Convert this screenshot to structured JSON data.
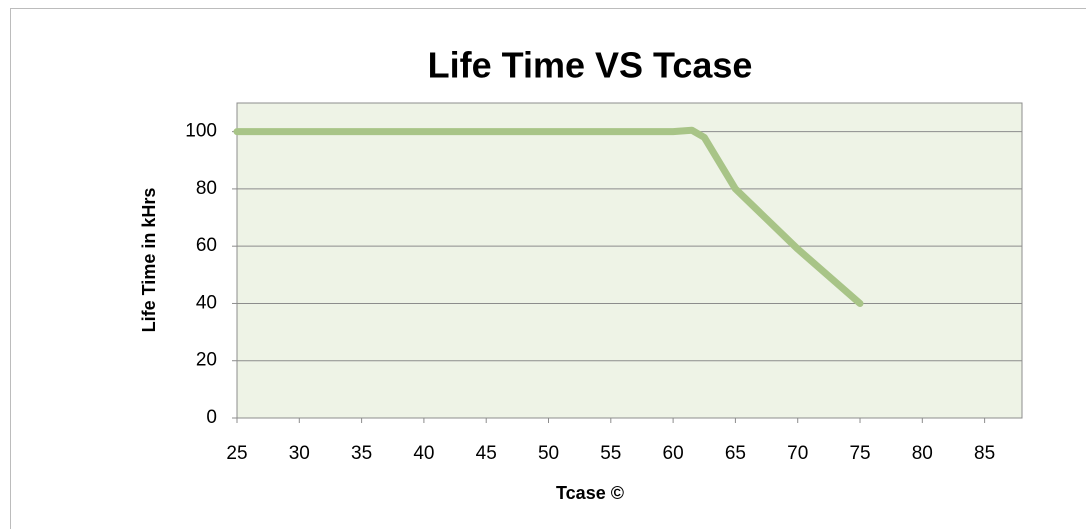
{
  "chart_data": {
    "type": "line",
    "title": "Life Time VS Tcase",
    "x_label": "Tcase ©",
    "y_label": "Life Time in kHrs",
    "x": [
      25,
      60,
      61.5,
      62.5,
      65,
      70,
      75
    ],
    "series": [
      {
        "name": "Life Time",
        "color": "#a8c487",
        "values": [
          100,
          100,
          100.5,
          98,
          80,
          59,
          40
        ]
      }
    ],
    "xlim": [
      25,
      88
    ],
    "xticks": [
      25,
      30,
      35,
      40,
      45,
      50,
      55,
      60,
      65,
      70,
      75,
      80,
      85
    ],
    "ylim": [
      0,
      110
    ],
    "yticks": [
      0,
      20,
      40,
      60,
      80,
      100
    ],
    "grid": true
  }
}
